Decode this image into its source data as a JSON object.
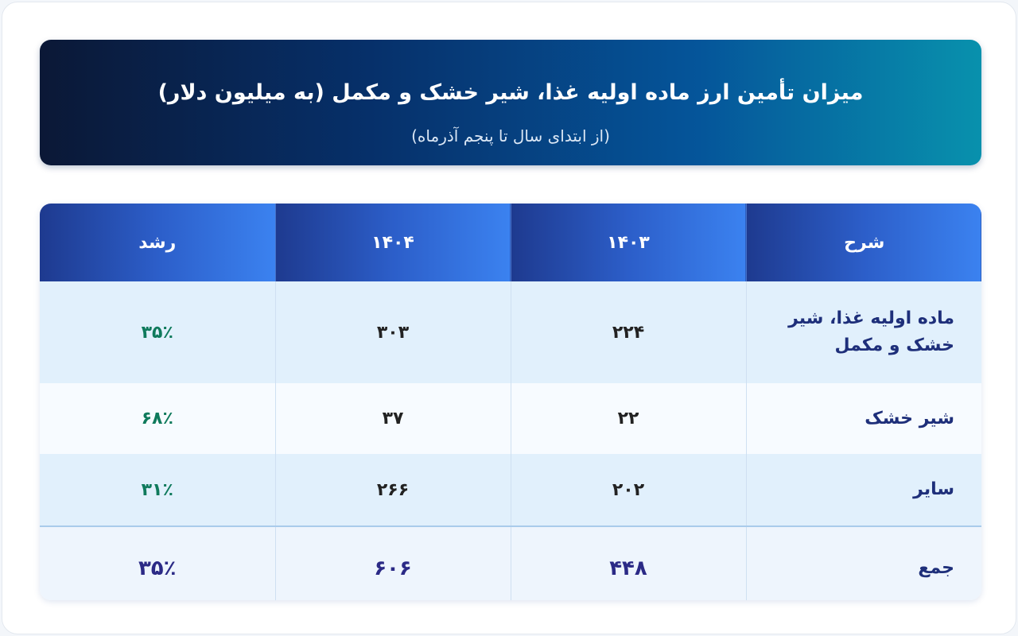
{
  "header": {
    "title": "میزان تأمین ارز ماده اولیه غذا، شیر خشک و مکمل (به میلیون دلار)",
    "subtitle": "(از ابتدای سال تا پنجم آذرماه)"
  },
  "colors": {
    "banner_start": "#0b1836",
    "banner_end": "#0891ad",
    "header_row": "#2c5ec9",
    "growth": "#0f7a5c",
    "total": "#2b2a86"
  },
  "chart_data": {
    "type": "table",
    "title": "میزان تأمین ارز ماده اولیه غذا، شیر خشک و مکمل (به میلیون دلار)",
    "subtitle": "(از ابتدای سال تا پنجم آذرماه)",
    "columns": [
      "شرح",
      "۱۴۰۳",
      "۱۴۰۴",
      "رشد"
    ],
    "rows": [
      [
        "ماده اولیه غذا، شیر خشک و مکمل",
        "۲۲۴",
        "۳۰۳",
        "۳۵٪"
      ],
      [
        "شیر خشک",
        "۲۲",
        "۳۷",
        "۶۸٪"
      ],
      [
        "سایر",
        "۲۰۲",
        "۲۶۶",
        "۳۱٪"
      ]
    ],
    "total": [
      "جمع",
      "۴۴۸",
      "۶۰۶",
      "۳۵٪"
    ]
  }
}
